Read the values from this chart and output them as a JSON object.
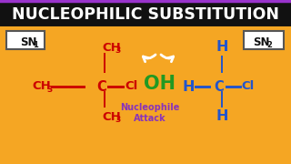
{
  "bg_color": "#F5A623",
  "title_bg": "#111111",
  "title_text": "NUCLEOPHILIC SUBSTITUTION",
  "title_color": "#FFFFFF",
  "header_border_top": "#9B30CC",
  "header_border_bottom": "#F5A623",
  "sn_box_color": "#FFFFFF",
  "sn_text_color": "#111111",
  "red": "#CC0000",
  "blue": "#2255CC",
  "green": "#229922",
  "purple": "#8833BB",
  "nucleophile_line1": "Nucleophile",
  "nucleophile_line2": "Attack"
}
